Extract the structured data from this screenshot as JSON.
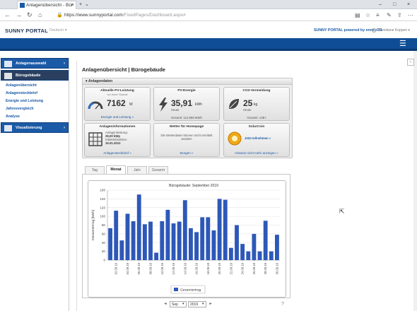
{
  "browser": {
    "tab_title": "Anlagenübersicht - Bür",
    "url_host": "https://www.sunnyportal.com",
    "url_path": "/FixedPages/Dashboard.aspx#"
  },
  "header": {
    "logo": "SUNNY PORTAL",
    "device": "Deutsch ▾",
    "powered": "SUNNY PORTAL powered by ennexOS",
    "user": "Christiane Koppen ▾"
  },
  "sidebar": {
    "sections": [
      {
        "label": "Anlagenauswahl"
      },
      {
        "label": "Bürogebäude"
      },
      {
        "label": "Visualisierung"
      }
    ],
    "items": [
      {
        "label": "Anlagenübersicht"
      },
      {
        "label": "Anlagensteckbrief"
      },
      {
        "label": "Energie und Leistung"
      },
      {
        "label": "Jahresvergleich"
      },
      {
        "label": "Analyse"
      }
    ]
  },
  "page": {
    "title": "Anlagenübersicht | Bürogebäude",
    "panel_title": "▾ Anlagendaten"
  },
  "tiles": {
    "power": {
      "title": "Aktuelle PV-Leistung",
      "sub": "vor einer Stunde",
      "value": "7162",
      "unit": "W",
      "link": "Energie und Leistung »"
    },
    "energy": {
      "title": "PV-Energie",
      "value": "35,91",
      "unit": "kWh",
      "sub": "Heute",
      "total": "Gesamt: 112,968 MWh"
    },
    "co2": {
      "title": "CO2-Vermeidung",
      "value": "25",
      "unit": "kg",
      "sub": "Heute",
      "total": "Gesamt: 138 t"
    },
    "info": {
      "title": "Anlageninformationen",
      "l1": "Anlagenleistung:",
      "l2": "29,00 kWp",
      "l3": "Inbetriebnahme:",
      "l4": "15.01.2012",
      "link": "Anlagensteckbrief »"
    },
    "weather": {
      "title": "Wetter für Homepage",
      "text": "Die Wetterdaten können nicht ermittelt werden!",
      "link": "Morgen »"
    },
    "solarcoin": {
      "title": "SolarCoin",
      "text": "Jetzt teilnehmen »",
      "link": "Hinweis nicht mehr anzeigen »"
    }
  },
  "tabs": [
    {
      "label": "Tag"
    },
    {
      "label": "Monat"
    },
    {
      "label": "Jahr"
    },
    {
      "label": "Gesamt"
    }
  ],
  "controls": {
    "month": "Sep",
    "year": "2019"
  },
  "chart_data": {
    "type": "bar",
    "title": "Bürogebäude: September 2019",
    "ylabel": "Gesamtertrag [kWh]",
    "ylim": [
      0,
      160
    ],
    "yticks": [
      0,
      20,
      40,
      60,
      80,
      100,
      120,
      140,
      160
    ],
    "categories": [
      "01.09.19",
      "02.09.19",
      "03.09.19",
      "04.09.19",
      "05.09.19",
      "06.09.19",
      "07.09.19",
      "08.09.19",
      "09.09.19",
      "10.09.19",
      "11.09.19",
      "12.09.19",
      "13.09.19",
      "14.09.19",
      "15.09.19",
      "16.09.19",
      "17.09.19",
      "18.09.19",
      "19.09.19",
      "20.09.19",
      "21.09.19",
      "22.09.19",
      "23.09.19",
      "24.09.19",
      "25.09.19",
      "26.09.19",
      "27.09.19",
      "28.09.19",
      "29.09.19",
      "30.09.19"
    ],
    "xtick_labels": [
      "02.09.19",
      "04.09.19",
      "06.09.19",
      "08.09.19",
      "10.09.19",
      "12.09.19",
      "14.09.19",
      "16.09.19",
      "18.09.19",
      "20.09.19",
      "22.09.19",
      "24.09.19",
      "26.09.19",
      "28.09.19",
      "30.09.19"
    ],
    "series": [
      {
        "name": "Gesamtertrag",
        "color": "#2d58b8",
        "values": [
          73,
          113,
          45,
          106,
          89,
          150,
          82,
          88,
          17,
          89,
          115,
          84,
          88,
          137,
          73,
          64,
          98,
          98,
          68,
          140,
          138,
          28,
          80,
          37,
          20,
          60,
          20,
          90,
          20,
          58
        ]
      }
    ],
    "legend": "bottom",
    "grid": true
  }
}
